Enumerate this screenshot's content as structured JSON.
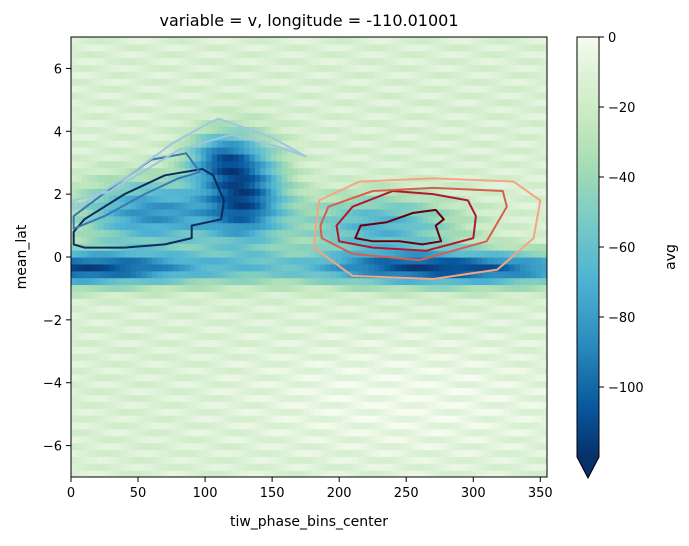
{
  "chart_data": {
    "type": "heatmap",
    "title": "variable = v, longitude = -110.01001",
    "xlabel": "tiw_phase_bins_center",
    "ylabel": "mean_lat",
    "xlim": [
      0,
      355
    ],
    "ylim": [
      -7,
      7
    ],
    "x_ticks": [
      0,
      50,
      100,
      150,
      200,
      250,
      300,
      350
    ],
    "x_tick_labels": [
      "0",
      "50",
      "100",
      "150",
      "200",
      "250",
      "300",
      "350"
    ],
    "y_ticks": [
      -6,
      -4,
      -2,
      0,
      2,
      4,
      6
    ],
    "y_tick_labels": [
      "−6",
      "−4",
      "−2",
      "0",
      "2",
      "4",
      "6"
    ],
    "colorbar": {
      "label": "avg",
      "colormap": "GnBu_r",
      "range": [
        -120,
        0
      ],
      "extend": "min",
      "ticks": [
        0,
        -20,
        -40,
        -60,
        -80,
        -100
      ],
      "tick_labels": [
        "0",
        "−20",
        "−40",
        "−60",
        "−80",
        "−100"
      ]
    },
    "contours": {
      "colormap": "RdBu_r",
      "negative": [
        {
          "level": "lowest",
          "color": "#0b2e5e",
          "points": [
            [
              2,
              0.4
            ],
            [
              10,
              0.3
            ],
            [
              40,
              0.3
            ],
            [
              70,
              0.4
            ],
            [
              90,
              0.6
            ],
            [
              90,
              1.0
            ],
            [
              112,
              1.2
            ],
            [
              114,
              1.8
            ],
            [
              106,
              2.6
            ],
            [
              98,
              2.8
            ],
            [
              70,
              2.6
            ],
            [
              40,
              2.0
            ],
            [
              10,
              1.2
            ],
            [
              2,
              0.8
            ]
          ]
        },
        {
          "level": "low",
          "color": "#3a78b0",
          "points": [
            [
              2,
              0.9
            ],
            [
              25,
              1.3
            ],
            [
              55,
              2.0
            ],
            [
              80,
              2.5
            ],
            [
              96,
              2.7
            ],
            [
              86,
              3.3
            ],
            [
              60,
              3.1
            ],
            [
              30,
              2.2
            ],
            [
              2,
              1.3
            ]
          ]
        },
        {
          "level": "mid",
          "color": "#9ec6e0",
          "points": [
            [
              2,
              1.5
            ],
            [
              40,
              2.5
            ],
            [
              75,
              3.6
            ],
            [
              100,
              4.2
            ],
            [
              110,
              4.4
            ],
            [
              150,
              3.8
            ],
            [
              175,
              3.2
            ],
            [
              155,
              3.5
            ],
            [
              120,
              3.9
            ],
            [
              80,
              3.4
            ],
            [
              30,
              2.1
            ],
            [
              2,
              1.8
            ]
          ]
        }
      ],
      "positive": [
        {
          "level": "highest",
          "color": "#67000d",
          "points": [
            [
              212,
              0.6
            ],
            [
              225,
              0.5
            ],
            [
              245,
              0.5
            ],
            [
              262,
              0.4
            ],
            [
              276,
              0.5
            ],
            [
              272,
              1.0
            ],
            [
              278,
              1.2
            ],
            [
              272,
              1.5
            ],
            [
              255,
              1.4
            ],
            [
              235,
              1.1
            ],
            [
              216,
              1.0
            ]
          ]
        },
        {
          "level": "high",
          "color": "#b2182b",
          "points": [
            [
              200,
              0.5
            ],
            [
              225,
              0.3
            ],
            [
              265,
              0.2
            ],
            [
              300,
              0.6
            ],
            [
              302,
              1.3
            ],
            [
              296,
              1.8
            ],
            [
              270,
              2.0
            ],
            [
              240,
              2.1
            ],
            [
              210,
              1.6
            ],
            [
              198,
              1.0
            ]
          ]
        },
        {
          "level": "mid",
          "color": "#d6604d",
          "points": [
            [
              187,
              0.6
            ],
            [
              210,
              0.1
            ],
            [
              260,
              -0.1
            ],
            [
              310,
              0.5
            ],
            [
              325,
              1.6
            ],
            [
              322,
              2.1
            ],
            [
              270,
              2.2
            ],
            [
              225,
              2.1
            ],
            [
              192,
              1.6
            ],
            [
              186,
              1.0
            ]
          ]
        },
        {
          "level": "low",
          "color": "#f4a582",
          "points": [
            [
              181,
              0.3
            ],
            [
              210,
              -0.6
            ],
            [
              270,
              -0.7
            ],
            [
              318,
              -0.4
            ],
            [
              345,
              0.6
            ],
            [
              350,
              1.8
            ],
            [
              330,
              2.4
            ],
            [
              270,
              2.5
            ],
            [
              215,
              2.4
            ],
            [
              185,
              1.8
            ]
          ]
        }
      ]
    }
  }
}
